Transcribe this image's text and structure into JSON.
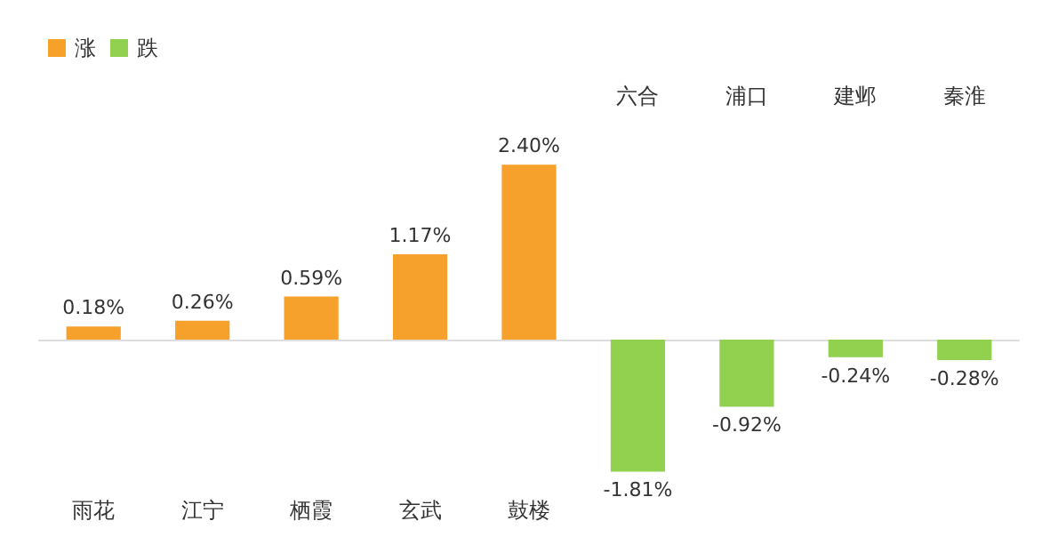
{
  "chart_data": {
    "type": "bar",
    "stacked": true,
    "categories": [
      "雨花",
      "江宁",
      "栖霞",
      "玄武",
      "鼓楼",
      "六合",
      "浦口",
      "建邺",
      "秦淮"
    ],
    "series": [
      {
        "name": "涨",
        "color": "#f5a12c",
        "values": [
          0.18,
          0.26,
          0.59,
          1.17,
          2.4,
          null,
          null,
          null,
          null
        ],
        "value_labels": [
          "0.18%",
          "0.26%",
          "0.59%",
          "1.17%",
          "2.40%",
          null,
          null,
          null,
          null
        ]
      },
      {
        "name": "跌",
        "color": "#92d050",
        "values": [
          null,
          null,
          null,
          null,
          null,
          -1.81,
          -0.92,
          -0.24,
          -0.28
        ],
        "value_labels": [
          null,
          null,
          null,
          null,
          null,
          "-1.81%",
          "-0.92%",
          "-0.24%",
          "-0.28%"
        ]
      }
    ],
    "legend": "top left",
    "grid": false
  }
}
